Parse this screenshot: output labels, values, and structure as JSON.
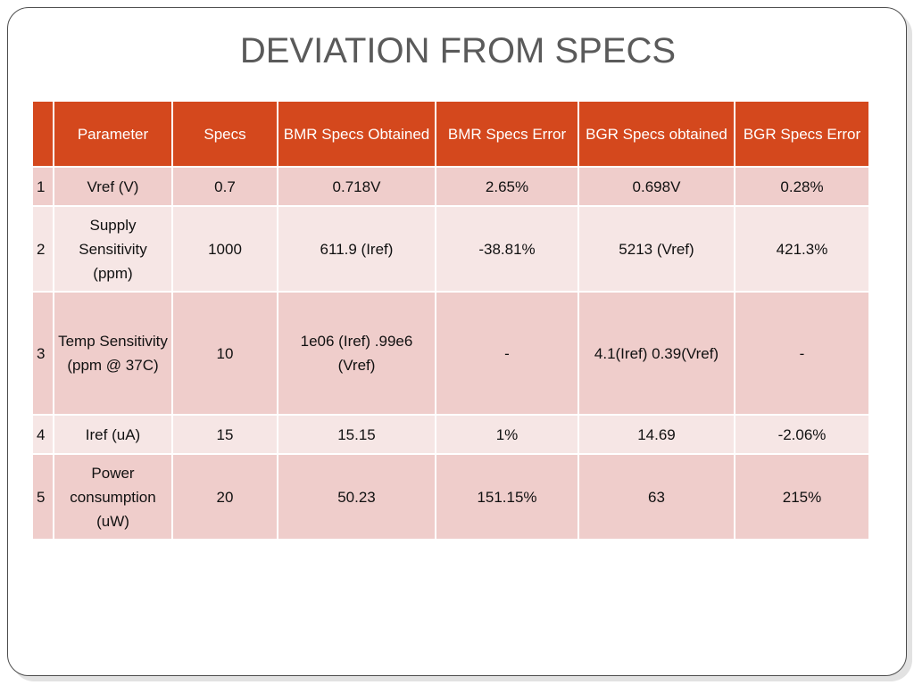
{
  "slide": {
    "title": "DEVIATION FROM SPECS"
  },
  "table": {
    "headers": [
      "",
      "Parameter",
      "Specs",
      "BMR Specs Obtained",
      "BMR Specs Error",
      "BGR Specs obtained",
      "BGR Specs Error"
    ],
    "rows": [
      {
        "index": "1",
        "parameter": "Vref (V)",
        "specs": "0.7",
        "bmr_obtained": "0.718V",
        "bmr_error": "2.65%",
        "bgr_obtained": "0.698V",
        "bgr_error": "0.28%"
      },
      {
        "index": "2",
        "parameter": "Supply Sensitivity (ppm)",
        "specs": "1000",
        "bmr_obtained": "611.9 (Iref)",
        "bmr_error": "-38.81%",
        "bgr_obtained": "5213 (Vref)",
        "bgr_error": "421.3%"
      },
      {
        "index": "3",
        "parameter": "Temp Sensitivity (ppm @ 37C)",
        "specs": "10",
        "bmr_obtained": "1e06 (Iref) .99e6 (Vref)",
        "bmr_error": "-",
        "bgr_obtained": "4.1(Iref) 0.39(Vref)",
        "bgr_error": "-"
      },
      {
        "index": "4",
        "parameter": "Iref (uA)",
        "specs": "15",
        "bmr_obtained": "15.15",
        "bmr_error": "1%",
        "bgr_obtained": "14.69",
        "bgr_error": "-2.06%"
      },
      {
        "index": "5",
        "parameter": "Power consumption (uW)",
        "specs": "20",
        "bmr_obtained": "50.23",
        "bmr_error": "151.15%",
        "bgr_obtained": "63",
        "bgr_error": "215%"
      }
    ]
  },
  "colors": {
    "header": "#d4481d",
    "row_odd": "#efcdcb",
    "row_even": "#f6e6e5",
    "title": "#5a5a5a"
  }
}
